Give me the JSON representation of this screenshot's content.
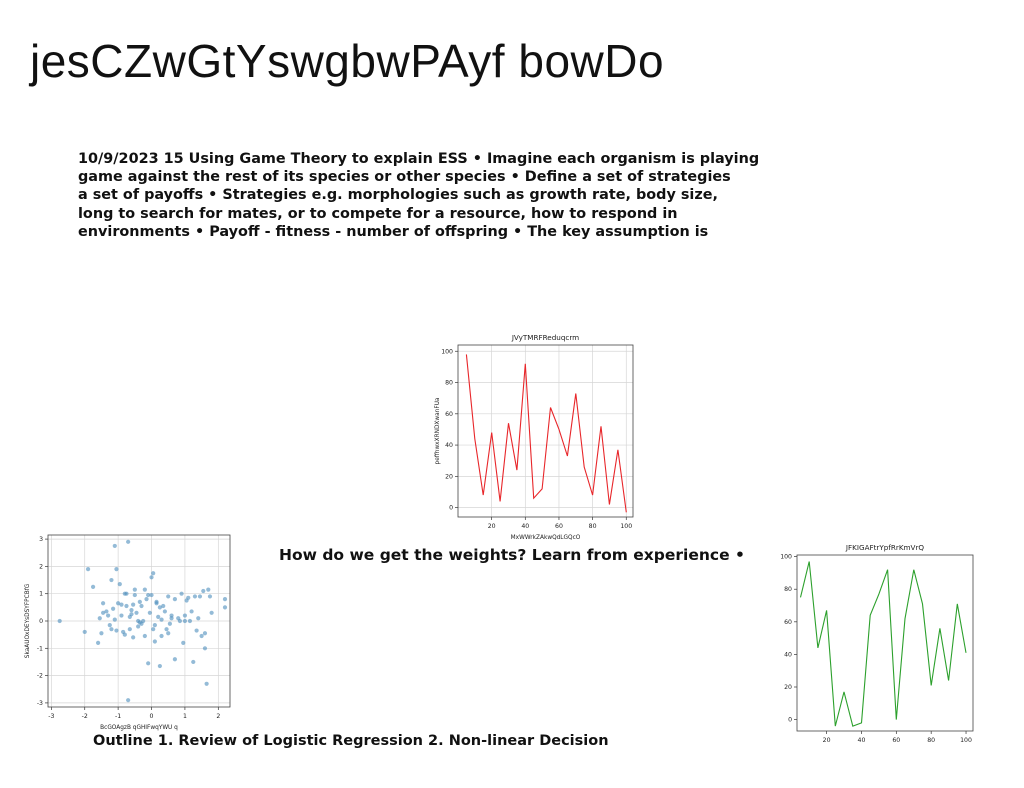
{
  "page": {
    "title": "jesCZwGtYswgbwPAyf bowDo",
    "paragraph_lines": [
      "10/9/2023 15 Using Game Theory to explain ESS • Imagine each organism is playing",
      "game against the rest of its species or other species • Define a set of strategies",
      "a set of payoffs • Strategies e.g. morphologies such as growth rate, body size,",
      "long to search for mates, or to compete for a resource, how to respond in",
      "environments • Payoff - fitness - number of offspring • The key assumption is"
    ],
    "caption_weights": "How do we get the weights? Learn from experience •",
    "caption_outline": "Outline 1. Review of Logistic Regression 2. Non-linear Decision"
  },
  "chart_data": [
    {
      "type": "line",
      "title": "JVyTMRFReduqcrm",
      "xlabel": "MxWWrkZAkwQdLGQcO",
      "ylabel": "peffhwxXRNDXwanFUa",
      "color": "#e8262a",
      "grid": true,
      "xlim": [
        0,
        104
      ],
      "ylim": [
        -6,
        104
      ],
      "xticks": [
        20,
        40,
        60,
        80,
        100
      ],
      "yticks": [
        0,
        20,
        40,
        60,
        80,
        100
      ],
      "x": [
        5,
        10,
        15,
        20,
        25,
        30,
        35,
        40,
        45,
        50,
        55,
        60,
        65,
        70,
        75,
        80,
        85,
        90,
        95,
        100
      ],
      "values": [
        98,
        44,
        8,
        48,
        4,
        54,
        24,
        92,
        6,
        12,
        64,
        50,
        33,
        73,
        26,
        8,
        52,
        2,
        37,
        -3
      ]
    },
    {
      "type": "line",
      "title": "JFKIGAFtrYpfRrKmVrQ",
      "xlabel": "",
      "ylabel": "",
      "color": "#2ca02c",
      "grid": false,
      "xlim": [
        3,
        104
      ],
      "ylim": [
        -7,
        101
      ],
      "xticks": [
        20,
        40,
        60,
        80,
        100
      ],
      "yticks": [
        0,
        20,
        40,
        60,
        80,
        100
      ],
      "x": [
        5,
        10,
        15,
        20,
        25,
        30,
        35,
        40,
        45,
        50,
        55,
        60,
        65,
        70,
        75,
        80,
        85,
        90,
        95,
        100
      ],
      "values": [
        75,
        97,
        44,
        67,
        -4,
        17,
        -4,
        -2,
        64,
        77,
        92,
        0,
        62,
        92,
        71,
        21,
        56,
        24,
        71,
        41
      ]
    },
    {
      "type": "scatter",
      "title": "",
      "xlabel": "BcGOAgzB qGHIFwqYWU q",
      "ylabel": "SkaAUOxDEYsDSYFPCBfG",
      "color": "#4d8ebd",
      "grid": true,
      "xlim": [
        -3.1,
        2.35
      ],
      "ylim": [
        -3.15,
        3.15
      ],
      "xticks": [
        -3,
        -2,
        -1,
        0,
        1,
        2
      ],
      "yticks": [
        -3,
        -2,
        -1,
        0,
        1,
        2,
        3
      ],
      "x": [
        -2.75,
        -2.0,
        -1.9,
        -1.75,
        -1.55,
        -1.5,
        -1.45,
        -1.35,
        -1.3,
        -1.25,
        -1.2,
        -1.15,
        -1.1,
        -1.05,
        -1.0,
        -0.95,
        -0.9,
        -0.85,
        -0.8,
        -0.75,
        -0.7,
        -0.65,
        -0.6,
        -0.55,
        -0.5,
        -0.45,
        -0.4,
        -0.35,
        -0.3,
        -0.25,
        -0.2,
        -0.15,
        -0.1,
        -0.05,
        0.0,
        0.05,
        0.1,
        0.15,
        0.2,
        0.25,
        0.3,
        0.35,
        0.4,
        0.5,
        0.55,
        0.6,
        0.7,
        0.8,
        0.9,
        1.0,
        1.1,
        1.2,
        1.3,
        1.4,
        1.5,
        1.6,
        1.7,
        1.8,
        2.2,
        -1.45,
        -1.2,
        -0.9,
        -0.7,
        -0.6,
        -0.5,
        -0.3,
        -0.1,
        0.05,
        0.3,
        0.45,
        0.6,
        0.85,
        1.05,
        1.25,
        1.45,
        1.65,
        2.2,
        -1.1,
        -0.8,
        -0.4,
        0.0,
        0.25,
        0.7,
        1.0,
        1.55,
        -1.05,
        -0.75,
        -0.55,
        -0.2,
        0.15,
        0.5,
        0.95,
        1.35,
        1.75,
        -0.65,
        -0.35,
        0.1,
        1.6,
        -1.6,
        1.15
      ],
      "y": [
        0.0,
        -0.4,
        1.9,
        1.25,
        0.1,
        -0.45,
        0.65,
        0.35,
        0.2,
        -0.15,
        1.5,
        0.45,
        0.05,
        1.9,
        0.65,
        1.35,
        0.2,
        -0.4,
        1.0,
        0.55,
        2.9,
        -0.3,
        0.25,
        -0.6,
        1.15,
        0.3,
        -0.2,
        0.7,
        0.55,
        0.0,
        -0.55,
        0.8,
        -1.55,
        0.3,
        1.6,
        -0.3,
        -0.75,
        0.65,
        0.15,
        -1.65,
        0.05,
        0.55,
        0.35,
        0.9,
        -0.1,
        0.2,
        -1.4,
        0.1,
        1.0,
        0.0,
        0.85,
        0.35,
        0.9,
        0.1,
        -0.55,
        -1.0,
        1.15,
        0.3,
        0.8,
        0.3,
        -0.3,
        0.6,
        -2.9,
        0.4,
        0.95,
        -0.1,
        0.95,
        1.75,
        -0.55,
        -0.3,
        0.1,
        0.0,
        0.75,
        -1.5,
        0.9,
        -2.3,
        0.5,
        2.75,
        -0.5,
        0.0,
        0.95,
        0.5,
        0.8,
        0.2,
        1.1,
        -0.35,
        1.0,
        0.6,
        1.15,
        0.7,
        -0.45,
        -0.8,
        -0.35,
        0.9,
        0.15,
        -0.05,
        -0.15,
        -0.45,
        -0.8,
        0.0
      ]
    }
  ]
}
